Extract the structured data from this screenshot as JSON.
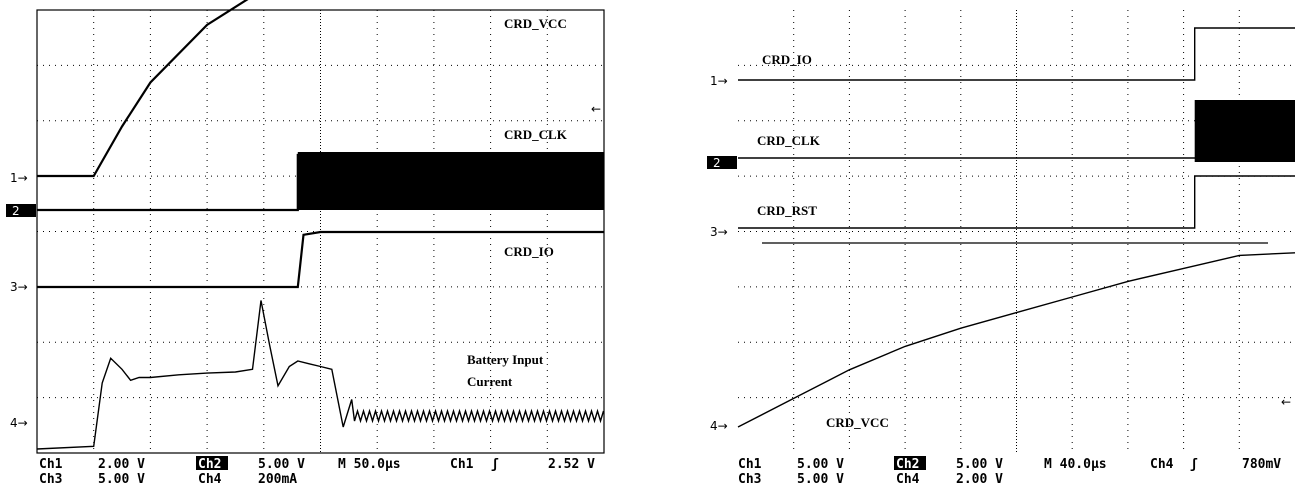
{
  "chart_data": [
    {
      "type": "line",
      "title": "",
      "time_base": "M 50.0µs",
      "trigger": {
        "source": "Ch1",
        "slope_symbol": "ʃ",
        "level": "2.52 V"
      },
      "readout": {
        "row1": [
          {
            "channel": "Ch1",
            "scale": "2.00 V",
            "highlight": false
          },
          {
            "channel": "Ch2",
            "scale": "5.00 V",
            "highlight": true
          }
        ],
        "row2": [
          {
            "channel": "Ch3",
            "scale": "5.00 V",
            "highlight": false
          },
          {
            "channel": "Ch4",
            "scale": "200mA",
            "highlight": false
          }
        ]
      },
      "channel_markers": [
        "1→",
        "2",
        "3→",
        "4→"
      ],
      "trigger_marker": "←",
      "x_divisions": 10,
      "y_divisions": 8,
      "series": [
        {
          "name": "CRD_VCC",
          "channel": 1,
          "x_div": [
            0,
            1,
            1.5,
            2,
            3,
            4,
            5,
            5.5,
            6,
            7,
            8,
            9,
            10
          ],
          "y_div": [
            0,
            0,
            0.9,
            1.7,
            2.75,
            3.4,
            3.8,
            4.0,
            4.0,
            4.0,
            4.0,
            4.0,
            4.0
          ]
        },
        {
          "name": "CRD_CLK",
          "channel": 2,
          "x_div": [
            0,
            1,
            2,
            3,
            4,
            4.6,
            4.6,
            10
          ],
          "y_div": [
            0,
            0,
            0,
            0,
            0,
            0,
            1.0,
            1.0
          ],
          "band": {
            "from_div": 4.6,
            "to_div": 10,
            "height_div": 1.0
          }
        },
        {
          "name": "CRD_IO",
          "channel": 3,
          "x_div": [
            0,
            1,
            2,
            3,
            4,
            4.6,
            4.7,
            5,
            6,
            7,
            8,
            9,
            10
          ],
          "y_div": [
            0,
            0,
            0,
            0,
            0,
            0,
            0.95,
            1.0,
            1.0,
            1.0,
            1.0,
            1.0,
            1.0
          ]
        },
        {
          "name": "Battery Input Current",
          "channel": 4,
          "x_div": [
            0,
            1.0,
            1.15,
            1.3,
            1.5,
            1.65,
            1.8,
            2.0,
            2.5,
            3.0,
            3.5,
            3.8,
            3.95,
            4.1,
            4.25,
            4.45,
            4.6,
            4.8,
            5.0,
            5.2,
            5.4,
            5.55,
            5.7,
            5.85,
            6.0,
            6.5,
            7.0,
            7.5,
            8.0,
            8.5,
            9.0,
            9.5,
            10
          ],
          "y_div": [
            0,
            0.05,
            1.2,
            1.65,
            1.45,
            1.25,
            1.3,
            1.3,
            1.35,
            1.38,
            1.4,
            1.45,
            2.7,
            1.9,
            1.15,
            1.5,
            1.6,
            1.55,
            1.5,
            1.45,
            0.4,
            0.9,
            0.6,
            0.65,
            0.6,
            0.62,
            0.6,
            0.6,
            0.62,
            0.6,
            0.6,
            0.62,
            0.6
          ],
          "ripple_from_div": 5.6
        }
      ]
    },
    {
      "type": "line",
      "title": "",
      "time_base": "M 40.0µs",
      "trigger": {
        "source": "Ch4",
        "slope_symbol": "ʃ",
        "level": "780mV"
      },
      "readout": {
        "row1": [
          {
            "channel": "Ch1",
            "scale": "5.00 V",
            "highlight": false
          },
          {
            "channel": "Ch2",
            "scale": "5.00 V",
            "highlight": true
          }
        ],
        "row2": [
          {
            "channel": "Ch3",
            "scale": "5.00 V",
            "highlight": false
          },
          {
            "channel": "Ch4",
            "scale": "2.00 V",
            "highlight": false
          }
        ]
      },
      "channel_markers": [
        "1→",
        "2",
        "3→",
        "4→"
      ],
      "trigger_marker": "←",
      "x_divisions": 10,
      "y_divisions": 8,
      "series": [
        {
          "name": "CRD_IO",
          "channel": 1,
          "x_div": [
            0,
            5,
            8.2,
            8.2,
            10
          ],
          "y_div": [
            0,
            0,
            0,
            1.0,
            1.0
          ]
        },
        {
          "name": "CRD_CLK",
          "channel": 2,
          "x_div": [
            0,
            8.2,
            8.2,
            10
          ],
          "y_div": [
            0,
            0,
            0,
            0
          ],
          "band": {
            "from_div": 8.2,
            "to_div": 10,
            "height_div": 1.0
          }
        },
        {
          "name": "CRD_RST",
          "channel": 3,
          "x_div": [
            0,
            8.2,
            8.2,
            10
          ],
          "y_div": [
            0,
            0,
            1.0,
            1.0
          ]
        },
        {
          "name": "CRD_VCC",
          "channel": 4,
          "x_div": [
            0,
            1,
            2,
            3,
            4,
            5,
            6,
            7,
            8,
            9,
            10
          ],
          "y_div": [
            0,
            0.55,
            1.1,
            1.55,
            1.9,
            2.2,
            2.5,
            2.8,
            3.05,
            3.3,
            3.35
          ]
        }
      ]
    }
  ]
}
